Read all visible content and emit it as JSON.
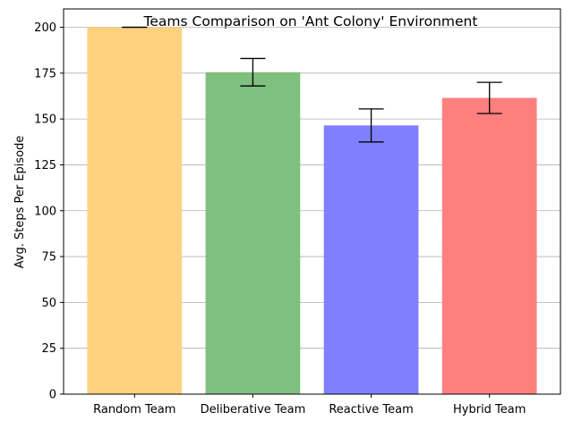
{
  "chart_data": {
    "type": "bar",
    "title": "Teams Comparison on 'Ant Colony' Environment",
    "xlabel": "",
    "ylabel": "Avg. Steps Per Episode",
    "categories": [
      "Random Team",
      "Deliberative Team",
      "Reactive Team",
      "Hybrid Team"
    ],
    "values": [
      200,
      175.5,
      146.5,
      161.5
    ],
    "errors": [
      0,
      7.5,
      9,
      8.5
    ],
    "colors": [
      "#FFD17F",
      "#7FBF7F",
      "#7F7FFF",
      "#FF7F7F"
    ],
    "ylim": [
      0,
      210
    ],
    "yticks": [
      0,
      25,
      50,
      75,
      100,
      125,
      150,
      175,
      200
    ],
    "grid": "y"
  }
}
